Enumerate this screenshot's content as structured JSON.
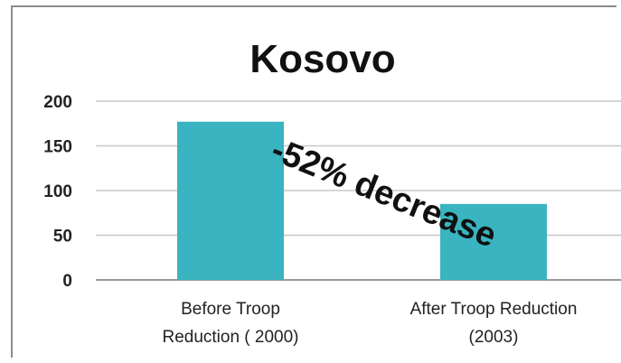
{
  "chart_data": {
    "type": "bar",
    "title": "Kosovo",
    "categories": [
      [
        "Before Troop",
        "Reduction ( 2000)"
      ],
      [
        "After Troop Reduction",
        "(2003)"
      ]
    ],
    "values": [
      177,
      85
    ],
    "ylim": [
      0,
      200
    ],
    "yticks": [
      0,
      50,
      100,
      150,
      200
    ],
    "grid": true,
    "annotation": "-52% decrease",
    "bar_color": "#3ab4c0",
    "grid_color": "#c8c8c8"
  }
}
